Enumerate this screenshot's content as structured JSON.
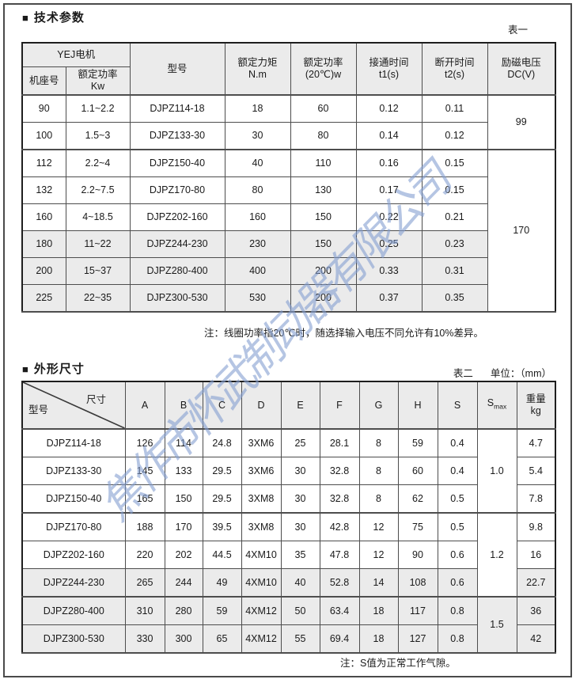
{
  "page": {
    "bullet": "■",
    "section1_title": "技术参数",
    "section2_title": "外形尺寸",
    "table1_label": "表一",
    "table2_label": "表二",
    "unit_label": "单位：（mm）",
    "note1": "注：线圈功率指20℃时，随选择输入电压不同允许有10%差异。",
    "note2": "注：S值为正常工作气隙。",
    "watermark": "焦作市怀武制动器有限公司"
  },
  "colors": {
    "table_shade": "#ebebeb",
    "watermark_blue": "#849ed0",
    "heavy_border": "#1e1e1e"
  },
  "table1": {
    "header": {
      "yej_motor": "YEJ电机",
      "frame_no": "机座号",
      "rated_power_l1": "额定功率",
      "rated_power_l2": "Kw",
      "model": "型号",
      "torque_l1": "额定力矩",
      "torque_l2": "N.m",
      "power20_l1": "额定功率",
      "power20_l2": "(20℃)w",
      "t1_l1": "接通时间",
      "t1_l2": "t1(s)",
      "t2_l1": "断开时间",
      "t2_l2": "t2(s)",
      "voltage_l1": "励磁电压",
      "voltage_l2": "DC(V)"
    },
    "rows": [
      [
        "90",
        "1.1~2.2",
        "DJPZ114-18",
        "18",
        "60",
        "0.12",
        "0.11"
      ],
      [
        "100",
        "1.5~3",
        "DJPZ133-30",
        "30",
        "80",
        "0.14",
        "0.12"
      ],
      [
        "112",
        "2.2~4",
        "DJPZ150-40",
        "40",
        "110",
        "0.16",
        "0.15"
      ],
      [
        "132",
        "2.2~7.5",
        "DJPZ170-80",
        "80",
        "130",
        "0.17",
        "0.15"
      ],
      [
        "160",
        "4~18.5",
        "DJPZ202-160",
        "160",
        "150",
        "0.22",
        "0.21"
      ],
      [
        "180",
        "11~22",
        "DJPZ244-230",
        "230",
        "150",
        "0.25",
        "0.23"
      ],
      [
        "200",
        "15~37",
        "DJPZ280-400",
        "400",
        "200",
        "0.33",
        "0.31"
      ],
      [
        "225",
        "22~35",
        "DJPZ300-530",
        "530",
        "200",
        "0.37",
        "0.35"
      ]
    ],
    "voltage_groups": [
      {
        "value": "99",
        "rows": 2
      },
      {
        "value": "170",
        "rows": 6
      }
    ]
  },
  "table2": {
    "header": {
      "diag_top": "尺寸",
      "diag_bottom": "型号",
      "cols": [
        "A",
        "B",
        "C",
        "D",
        "E",
        "F",
        "G",
        "H",
        "S"
      ],
      "smax_base": "S",
      "smax_sub": "max",
      "weight_l1": "重量",
      "weight_l2": "kg"
    },
    "rows": [
      [
        "DJPZ114-18",
        "126",
        "114",
        "24.8",
        "3XM6",
        "25",
        "28.1",
        "8",
        "59",
        "0.4",
        "4.7"
      ],
      [
        "DJPZ133-30",
        "145",
        "133",
        "29.5",
        "3XM6",
        "30",
        "32.8",
        "8",
        "60",
        "0.4",
        "5.4"
      ],
      [
        "DJPZ150-40",
        "165",
        "150",
        "29.5",
        "3XM8",
        "30",
        "32.8",
        "8",
        "62",
        "0.5",
        "7.8"
      ],
      [
        "DJPZ170-80",
        "188",
        "170",
        "39.5",
        "3XM8",
        "30",
        "42.8",
        "12",
        "75",
        "0.5",
        "9.8"
      ],
      [
        "DJPZ202-160",
        "220",
        "202",
        "44.5",
        "4XM10",
        "35",
        "47.8",
        "12",
        "90",
        "0.6",
        "16"
      ],
      [
        "DJPZ244-230",
        "265",
        "244",
        "49",
        "4XM10",
        "40",
        "52.8",
        "14",
        "108",
        "0.6",
        "22.7"
      ],
      [
        "DJPZ280-400",
        "310",
        "280",
        "59",
        "4XM12",
        "50",
        "63.4",
        "18",
        "117",
        "0.8",
        "36"
      ],
      [
        "DJPZ300-530",
        "330",
        "300",
        "65",
        "4XM12",
        "55",
        "69.4",
        "18",
        "127",
        "0.8",
        "42"
      ]
    ],
    "smax_groups": [
      {
        "value": "1.0",
        "rows": 3
      },
      {
        "value": "1.2",
        "rows": 3
      },
      {
        "value": "1.5",
        "rows": 2
      }
    ]
  }
}
